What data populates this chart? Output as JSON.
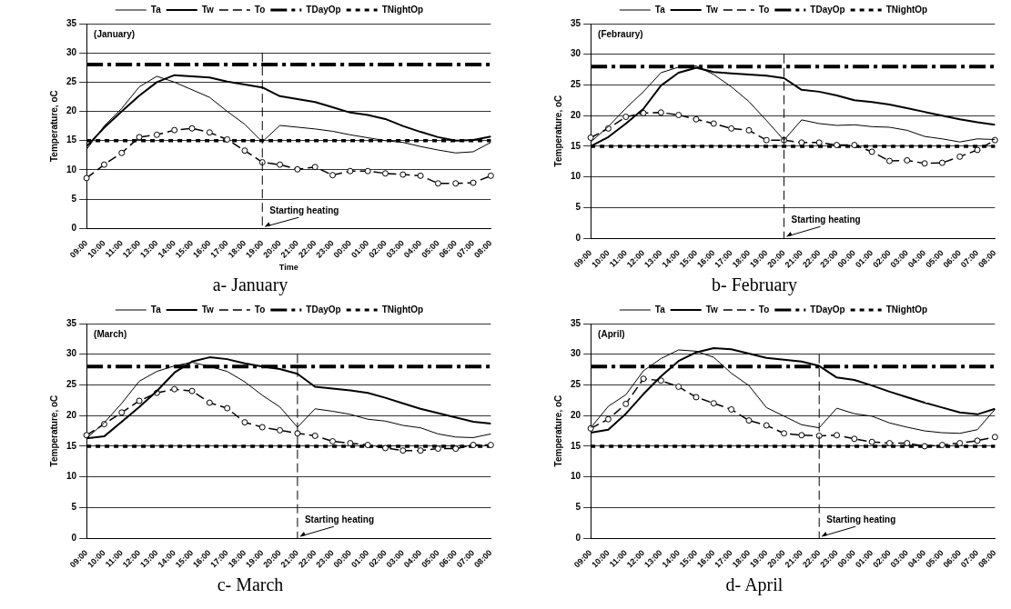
{
  "chart_data": [
    {
      "type": "line",
      "categories": [
        "09:00",
        "10:00",
        "11:00",
        "12:00",
        "13:00",
        "14:00",
        "15:00",
        "16:00",
        "17:00",
        "18:00",
        "19:00",
        "20:00",
        "21:00",
        "22:00",
        "23:00",
        "00:00",
        "01:00",
        "02:00",
        "03:00",
        "04:00",
        "05:00",
        "06:00",
        "07:00",
        "08:00"
      ],
      "ylabel": "Temperature, oC",
      "xlabel": "Time",
      "ylim": [
        0,
        35
      ],
      "yticks": [
        0,
        5,
        10,
        15,
        20,
        25,
        30,
        35
      ],
      "grid": "y",
      "legend": "top",
      "series": [
        {
          "name": "Ta",
          "color": "#000000",
          "marker": "none",
          "line_style": "solid",
          "values": [
            13.5,
            17.5,
            20.5,
            24.2,
            26,
            25,
            23.7,
            22.4,
            20,
            17.8,
            14.8,
            17.6,
            17.3,
            17,
            16.6,
            16,
            15.5,
            15,
            14.7,
            14,
            13.4,
            12.9,
            13.1,
            14.7
          ]
        },
        {
          "name": "Tw",
          "color": "#000000",
          "marker": "none",
          "line_style": "solid",
          "values": [
            14,
            17.2,
            20,
            22.7,
            25,
            26.2,
            26,
            25.8,
            25.1,
            24.6,
            24.1,
            22.6,
            22.1,
            21.6,
            20.7,
            19.8,
            19.4,
            18.7,
            17.5,
            16.5,
            15.6,
            15,
            15.1,
            15.7
          ]
        },
        {
          "name": "To",
          "color": "#000000",
          "marker": "circle",
          "line_style": "dashed",
          "values": [
            8.6,
            10.9,
            12.9,
            15.6,
            16,
            16.8,
            17.1,
            16.4,
            15.2,
            13.3,
            11.3,
            10.9,
            10.1,
            10.5,
            9.1,
            9.8,
            9.8,
            9.4,
            9.2,
            9,
            7.7,
            7.7,
            7.8,
            9
          ]
        },
        {
          "name": "TDayOp",
          "color": "#000000",
          "marker": "none",
          "line_style": "dashed",
          "values": [
            28,
            28,
            28,
            28,
            28,
            28,
            28,
            28,
            28,
            28,
            28,
            28,
            28,
            28,
            28,
            28,
            28,
            28,
            28,
            28,
            28,
            28,
            28,
            28
          ]
        },
        {
          "name": "TNightOp",
          "color": "#000000",
          "marker": "none",
          "line_style": "dotted",
          "values": [
            15,
            15,
            15,
            15,
            15,
            15,
            15,
            15,
            15,
            15,
            15,
            15,
            15,
            15,
            15,
            15,
            15,
            15,
            15,
            15,
            15,
            15,
            15,
            15
          ]
        }
      ],
      "ref_lines": [
        {
          "axis": "x",
          "value": "19:00",
          "label": "Starting heating",
          "line_style": "dashed"
        }
      ],
      "annotations": [
        "(January)",
        "a- January"
      ]
    },
    {
      "type": "line",
      "categories": [
        "09:00",
        "10:00",
        "11:00",
        "12:00",
        "13:00",
        "14:00",
        "15:00",
        "16:00",
        "17:00",
        "18:00",
        "19:00",
        "20:00",
        "21:00",
        "22:00",
        "23:00",
        "00:00",
        "01:00",
        "02:00",
        "03:00",
        "04:00",
        "05:00",
        "06:00",
        "07:00",
        "08:00"
      ],
      "ylabel": "Temperature, oC",
      "ylim": [
        0,
        35
      ],
      "yticks": [
        0,
        5,
        10,
        15,
        20,
        25,
        30,
        35
      ],
      "grid": "y",
      "legend": "top",
      "series": [
        {
          "name": "Ta",
          "color": "#000000",
          "marker": "none",
          "line_style": "solid",
          "values": [
            15.7,
            18.2,
            21.2,
            23.9,
            27,
            27.9,
            28.1,
            26.7,
            24.7,
            22.3,
            19.2,
            16,
            19.3,
            18.7,
            18.4,
            18.5,
            18.2,
            18.1,
            17.6,
            16.6,
            16.2,
            15.7,
            16.2,
            16.1
          ]
        },
        {
          "name": "Tw",
          "color": "#000000",
          "marker": "none",
          "line_style": "solid",
          "values": [
            15,
            16.5,
            18.7,
            21.1,
            24.9,
            27,
            27.8,
            27.1,
            26.9,
            26.7,
            26.5,
            26.1,
            24.2,
            23.9,
            23.3,
            22.5,
            22.2,
            21.8,
            21.2,
            20.6,
            20,
            19.4,
            18.9,
            18.5
          ]
        },
        {
          "name": "To",
          "color": "#000000",
          "marker": "circle",
          "line_style": "dashed",
          "values": [
            16.4,
            17.9,
            19.8,
            20.4,
            20.5,
            20.1,
            19.4,
            18.7,
            17.9,
            17.6,
            16,
            16,
            15.6,
            15.6,
            15.2,
            15.2,
            14.1,
            12.6,
            12.7,
            12.2,
            12.3,
            13.3,
            14.4,
            16
          ]
        },
        {
          "name": "TDayOp",
          "color": "#000000",
          "marker": "none",
          "line_style": "dashed",
          "values": [
            28,
            28,
            28,
            28,
            28,
            28,
            28,
            28,
            28,
            28,
            28,
            28,
            28,
            28,
            28,
            28,
            28,
            28,
            28,
            28,
            28,
            28,
            28,
            28
          ]
        },
        {
          "name": "TNightOp",
          "color": "#000000",
          "marker": "none",
          "line_style": "dotted",
          "values": [
            15,
            15,
            15,
            15,
            15,
            15,
            15,
            15,
            15,
            15,
            15,
            15,
            15,
            15,
            15,
            15,
            15,
            15,
            15,
            15,
            15,
            15,
            15,
            15
          ]
        }
      ],
      "ref_lines": [
        {
          "axis": "x",
          "value": "20:00",
          "label": "Starting heating",
          "line_style": "dashed"
        }
      ],
      "annotations": [
        "(Febraury)",
        "b- February"
      ]
    },
    {
      "type": "line",
      "categories": [
        "09:00",
        "10:00",
        "11:00",
        "12:00",
        "13:00",
        "14:00",
        "15:00",
        "16:00",
        "17:00",
        "18:00",
        "19:00",
        "20:00",
        "21:00",
        "22:00",
        "23:00",
        "00:00",
        "01:00",
        "02:00",
        "03:00",
        "04:00",
        "05:00",
        "06:00",
        "07:00",
        "08:00"
      ],
      "ylabel": "Temperature, oC",
      "ylim": [
        0,
        35
      ],
      "yticks": [
        0,
        5,
        10,
        15,
        20,
        25,
        30,
        35
      ],
      "grid": "y",
      "legend": "top",
      "series": [
        {
          "name": "Ta",
          "color": "#000000",
          "marker": "none",
          "line_style": "solid",
          "values": [
            16.3,
            18.8,
            22,
            25.6,
            27.2,
            28.1,
            28.7,
            28,
            27.2,
            25.5,
            23.3,
            21.4,
            18.1,
            21.1,
            20.7,
            20.2,
            19.4,
            19.1,
            18.4,
            18,
            17,
            16.5,
            16.4,
            17
          ]
        },
        {
          "name": "Tw",
          "color": "#000000",
          "marker": "none",
          "line_style": "solid",
          "values": [
            16.3,
            16.6,
            19,
            21.4,
            24,
            27,
            28.8,
            29.5,
            29.2,
            28.5,
            28,
            27.6,
            26.8,
            24.7,
            24.4,
            24.1,
            23.7,
            22.9,
            22,
            21.1,
            20.4,
            19.7,
            19,
            18.7
          ]
        },
        {
          "name": "To",
          "color": "#000000",
          "marker": "circle",
          "line_style": "dashed",
          "values": [
            16.8,
            18.6,
            20.5,
            22.4,
            23.7,
            24.3,
            24,
            22.1,
            21.2,
            18.9,
            18.1,
            17.6,
            17.1,
            16.7,
            15.8,
            15.5,
            15.2,
            14.7,
            14.3,
            14.3,
            14.6,
            14.6,
            15.2,
            15.2
          ]
        },
        {
          "name": "TDayOp",
          "color": "#000000",
          "marker": "none",
          "line_style": "dashed",
          "values": [
            28,
            28,
            28,
            28,
            28,
            28,
            28,
            28,
            28,
            28,
            28,
            28,
            28,
            28,
            28,
            28,
            28,
            28,
            28,
            28,
            28,
            28,
            28,
            28
          ]
        },
        {
          "name": "TNightOp",
          "color": "#000000",
          "marker": "none",
          "line_style": "dotted",
          "values": [
            15,
            15,
            15,
            15,
            15,
            15,
            15,
            15,
            15,
            15,
            15,
            15,
            15,
            15,
            15,
            15,
            15,
            15,
            15,
            15,
            15,
            15,
            15,
            15
          ]
        }
      ],
      "ref_lines": [
        {
          "axis": "x",
          "value": "21:00",
          "label": "Starting heating",
          "line_style": "dashed"
        }
      ],
      "annotations": [
        "(March)",
        "c- March"
      ]
    },
    {
      "type": "line",
      "categories": [
        "09:00",
        "10:00",
        "11:00",
        "12:00",
        "13:00",
        "14:00",
        "15:00",
        "16:00",
        "17:00",
        "18:00",
        "19:00",
        "20:00",
        "21:00",
        "22:00",
        "23:00",
        "00:00",
        "01:00",
        "02:00",
        "03:00",
        "04:00",
        "05:00",
        "06:00",
        "07:00",
        "08:00"
      ],
      "ylabel": "Temperature, oC",
      "ylim": [
        0,
        35
      ],
      "yticks": [
        0,
        5,
        10,
        15,
        20,
        25,
        30,
        35
      ],
      "grid": "y",
      "legend": "top",
      "series": [
        {
          "name": "Ta",
          "color": "#000000",
          "marker": "none",
          "line_style": "solid",
          "values": [
            18,
            21.5,
            23.4,
            27.3,
            29.3,
            30.7,
            30.5,
            29.5,
            26.9,
            24.9,
            21.3,
            19.9,
            18.5,
            18,
            21.2,
            20.3,
            19.9,
            18.8,
            18.1,
            17.5,
            17.2,
            17.1,
            17.7,
            21
          ]
        },
        {
          "name": "Tw",
          "color": "#000000",
          "marker": "none",
          "line_style": "solid",
          "values": [
            17.2,
            17.7,
            20.3,
            23.5,
            26.4,
            28.9,
            30.3,
            31,
            30.8,
            30.1,
            29.4,
            29.1,
            28.8,
            28.1,
            26.2,
            25.8,
            24.9,
            23.9,
            23,
            22.1,
            21.3,
            20.5,
            20.2,
            21.1
          ]
        },
        {
          "name": "To",
          "color": "#000000",
          "marker": "circle",
          "line_style": "dashed",
          "values": [
            17.9,
            19.4,
            21.9,
            26,
            25.7,
            24.7,
            23,
            22,
            21,
            19.2,
            18.4,
            17.1,
            16.8,
            16.7,
            16.8,
            16.2,
            15.7,
            15.5,
            15.5,
            15,
            15.2,
            15.5,
            15.9,
            16.5
          ]
        },
        {
          "name": "TDayOp",
          "color": "#000000",
          "marker": "none",
          "line_style": "dashed",
          "values": [
            28,
            28,
            28,
            28,
            28,
            28,
            28,
            28,
            28,
            28,
            28,
            28,
            28,
            28,
            28,
            28,
            28,
            28,
            28,
            28,
            28,
            28,
            28,
            28
          ]
        },
        {
          "name": "TNightOp",
          "color": "#000000",
          "marker": "none",
          "line_style": "dotted",
          "values": [
            15,
            15,
            15,
            15,
            15,
            15,
            15,
            15,
            15,
            15,
            15,
            15,
            15,
            15,
            15,
            15,
            15,
            15,
            15,
            15,
            15,
            15,
            15,
            15
          ]
        }
      ],
      "ref_lines": [
        {
          "axis": "x",
          "value": "22:00",
          "label": "Starting heating",
          "line_style": "dashed"
        }
      ],
      "annotations": [
        "(April)",
        "d- April"
      ]
    }
  ]
}
